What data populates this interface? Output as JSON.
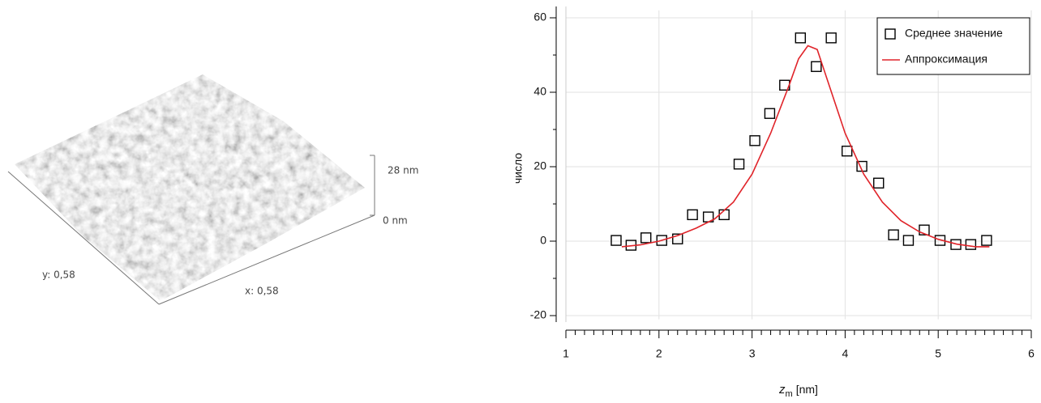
{
  "surface_image": {
    "z_max_label": "28 nm",
    "z_min_label": "0 nm",
    "y_label": "y: 0,58",
    "x_label": "x: 0,58"
  },
  "chart_data": {
    "type": "scatter",
    "y_label": "число",
    "x_label": {
      "main": "z",
      "sub": "m",
      "rest": "[nm]"
    },
    "xlim": [
      1,
      6
    ],
    "xticks": [
      1,
      2,
      3,
      4,
      5,
      6
    ],
    "xminorticks": [
      1.1,
      1.2,
      1.3,
      1.4,
      1.5,
      1.6,
      1.7,
      1.8,
      1.9,
      2.1,
      2.2,
      2.3,
      2.4,
      2.5,
      2.6,
      2.7,
      2.8,
      2.9,
      3.1,
      3.2,
      3.3,
      3.4,
      3.5,
      3.6,
      3.7,
      3.8,
      3.9,
      4.1,
      4.2,
      4.3,
      4.4,
      4.5,
      4.6,
      4.7,
      4.8,
      4.9,
      5.1,
      5.2,
      5.3,
      5.4,
      5.5,
      5.6,
      5.7,
      5.8,
      5.9
    ],
    "ylim": [
      -21,
      62
    ],
    "yticks": [
      -20,
      0,
      20,
      40,
      60
    ],
    "yminorticks": [
      -10,
      10,
      30,
      50
    ],
    "grid": true,
    "legend": "upper right",
    "series": [
      {
        "name": "Среднее значение",
        "type": "scatter",
        "color": "#000000",
        "x": [
          1.54,
          1.7,
          1.86,
          2.03,
          2.2,
          2.36,
          2.53,
          2.7,
          2.86,
          3.03,
          3.19,
          3.35,
          3.52,
          3.69,
          3.85,
          4.02,
          4.18,
          4.36,
          4.52,
          4.68,
          4.85,
          5.02,
          5.19,
          5.35,
          5.52
        ],
        "values": [
          0.2,
          -1.1,
          0.9,
          0.2,
          0.6,
          7.1,
          6.5,
          7.1,
          20.7,
          27.0,
          34.3,
          41.9,
          54.6,
          46.9,
          54.6,
          24.2,
          20.1,
          15.6,
          1.7,
          0.2,
          3.0,
          0.2,
          -0.9,
          -0.9,
          0.2
        ]
      },
      {
        "name": "Аппроксимация",
        "type": "line",
        "color": "#e0242a",
        "x": [
          1.6,
          1.8,
          2.0,
          2.2,
          2.4,
          2.6,
          2.8,
          3.0,
          3.2,
          3.4,
          3.5,
          3.6,
          3.7,
          3.8,
          4.0,
          4.2,
          4.4,
          4.6,
          4.8,
          5.0,
          5.2,
          5.4,
          5.55
        ],
        "values": [
          -1.5,
          -1.0,
          0,
          1.5,
          3.5,
          6,
          10.5,
          18,
          29,
          42,
          49,
          52.5,
          51.5,
          44,
          29,
          18,
          10.5,
          5.5,
          2.5,
          0.5,
          -0.8,
          -1.5,
          -1.5
        ]
      }
    ]
  }
}
